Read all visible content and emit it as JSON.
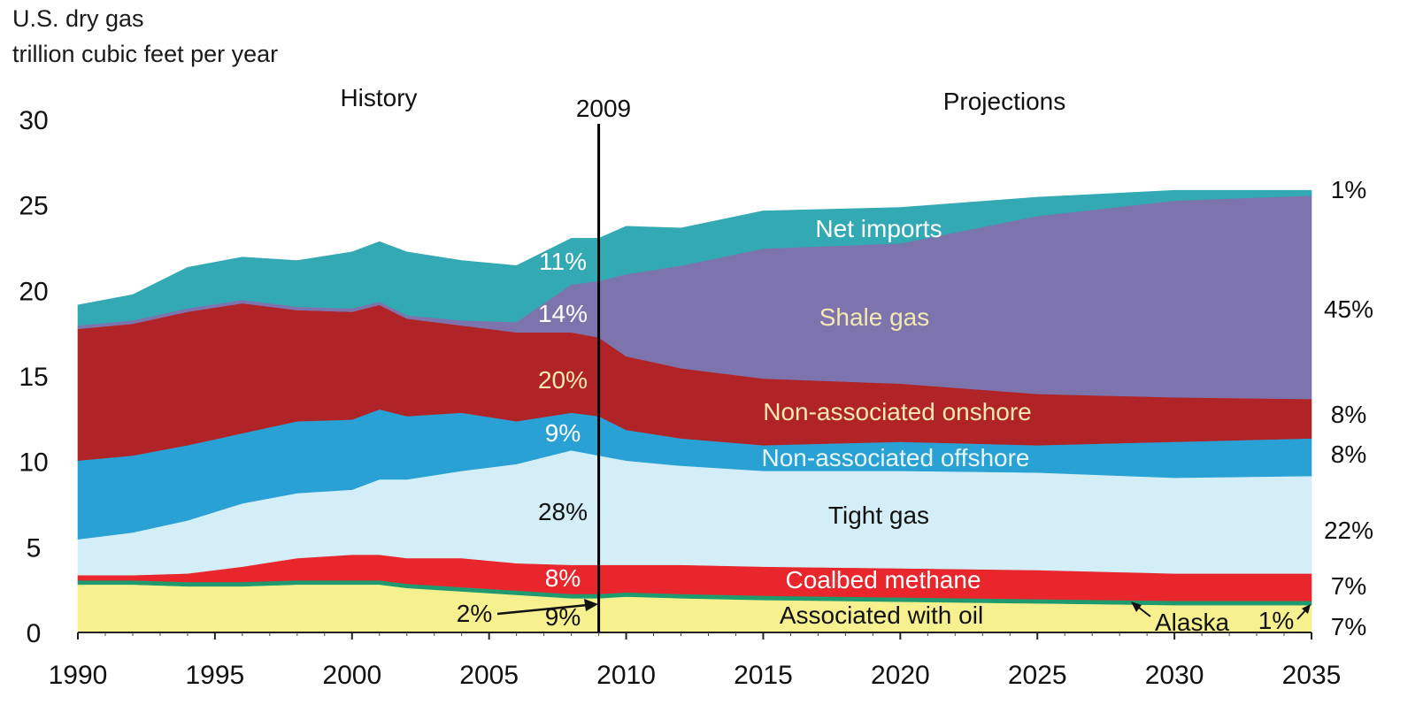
{
  "header": {
    "title_line1": "U.S. dry gas",
    "title_line2": "trillion cubic feet per year"
  },
  "annotations": {
    "history": "History",
    "projections": "Projections",
    "divider_year": "2009",
    "alaska_callout_left": "2%",
    "alaska_label": "Alaska",
    "alaska_callout_right": "1%"
  },
  "colors": {
    "associated_with_oil": "#f6f08f",
    "alaska": "#1e9a6e",
    "coalbed_methane": "#e8262b",
    "tight_gas": "#d4eef7",
    "non_associated_offshore": "#2aa1d4",
    "non_associated_onshore": "#b02428",
    "shale_gas": "#7d74ad",
    "net_imports": "#33a9b3",
    "divider": "#000000"
  },
  "chart_data": {
    "type": "area",
    "stacked": true,
    "xlabel": "",
    "ylabel": "",
    "xlim": [
      1990,
      2035
    ],
    "ylim": [
      0,
      30
    ],
    "x_ticks": [
      1990,
      1995,
      2000,
      2005,
      2010,
      2015,
      2020,
      2025,
      2030,
      2035
    ],
    "y_ticks": [
      0,
      5,
      10,
      15,
      20,
      25,
      30
    ],
    "grid": false,
    "legend": "none",
    "x": [
      1990,
      1992,
      1994,
      1996,
      1998,
      2000,
      2001,
      2002,
      2004,
      2006,
      2008,
      2009,
      2010,
      2012,
      2015,
      2020,
      2025,
      2030,
      2035
    ],
    "series": [
      {
        "name": "Associated with oil",
        "color_key": "associated_with_oil",
        "label_2009": "9%",
        "label_2035": "7%",
        "values": [
          2.8,
          2.8,
          2.7,
          2.7,
          2.8,
          2.8,
          2.8,
          2.6,
          2.4,
          2.2,
          2.0,
          2.0,
          2.1,
          2.0,
          1.9,
          1.8,
          1.7,
          1.6,
          1.6
        ]
      },
      {
        "name": "Alaska",
        "color_key": "alaska",
        "label_2009": "",
        "label_2035": "",
        "values": [
          0.25,
          0.25,
          0.25,
          0.25,
          0.25,
          0.25,
          0.25,
          0.25,
          0.25,
          0.25,
          0.25,
          0.25,
          0.25,
          0.25,
          0.25,
          0.25,
          0.25,
          0.25,
          0.25
        ]
      },
      {
        "name": "Coalbed methane",
        "color_key": "coalbed_methane",
        "label_2009": "8%",
        "label_2035": "7%",
        "values": [
          0.3,
          0.3,
          0.5,
          0.9,
          1.3,
          1.5,
          1.5,
          1.5,
          1.7,
          1.6,
          1.7,
          1.7,
          1.6,
          1.7,
          1.7,
          1.7,
          1.7,
          1.6,
          1.6
        ]
      },
      {
        "name": "Tight gas",
        "color_key": "tight_gas",
        "label_2009": "28%",
        "label_2035": "22%",
        "values": [
          2.1,
          2.5,
          3.1,
          3.7,
          3.8,
          3.8,
          4.4,
          4.6,
          5.1,
          5.8,
          6.7,
          6.4,
          6.1,
          5.8,
          5.6,
          5.7,
          5.7,
          5.6,
          5.7
        ]
      },
      {
        "name": "Non-associated offshore",
        "color_key": "non_associated_offshore",
        "label_2009": "9%",
        "label_2035": "8%",
        "values": [
          4.6,
          4.5,
          4.4,
          4.1,
          4.2,
          4.1,
          4.1,
          3.7,
          3.4,
          2.5,
          2.2,
          2.3,
          1.8,
          1.6,
          1.5,
          1.7,
          1.6,
          2.1,
          2.2
        ]
      },
      {
        "name": "Non-associated onshore",
        "color_key": "non_associated_onshore",
        "label_2009": "20%",
        "label_2035": "8%",
        "values": [
          7.7,
          7.7,
          7.8,
          7.6,
          6.5,
          6.3,
          6.1,
          5.7,
          5.1,
          5.2,
          4.7,
          4.6,
          4.3,
          4.1,
          3.9,
          3.4,
          3.0,
          2.6,
          2.3
        ]
      },
      {
        "name": "Shale gas",
        "color_key": "shale_gas",
        "label_2009": "14%",
        "label_2035": "45%",
        "values": [
          0.2,
          0.2,
          0.2,
          0.2,
          0.2,
          0.2,
          0.2,
          0.2,
          0.3,
          0.6,
          2.8,
          3.3,
          4.8,
          6.0,
          7.6,
          8.2,
          10.4,
          11.5,
          11.9
        ]
      },
      {
        "name": "Net imports",
        "color_key": "net_imports",
        "label_2009": "11%",
        "label_2035": "1%",
        "values": [
          1.2,
          1.5,
          2.4,
          2.5,
          2.7,
          3.3,
          3.5,
          3.7,
          3.5,
          3.3,
          2.7,
          2.5,
          2.8,
          2.2,
          2.2,
          2.1,
          1.1,
          0.6,
          0.3
        ]
      }
    ]
  }
}
